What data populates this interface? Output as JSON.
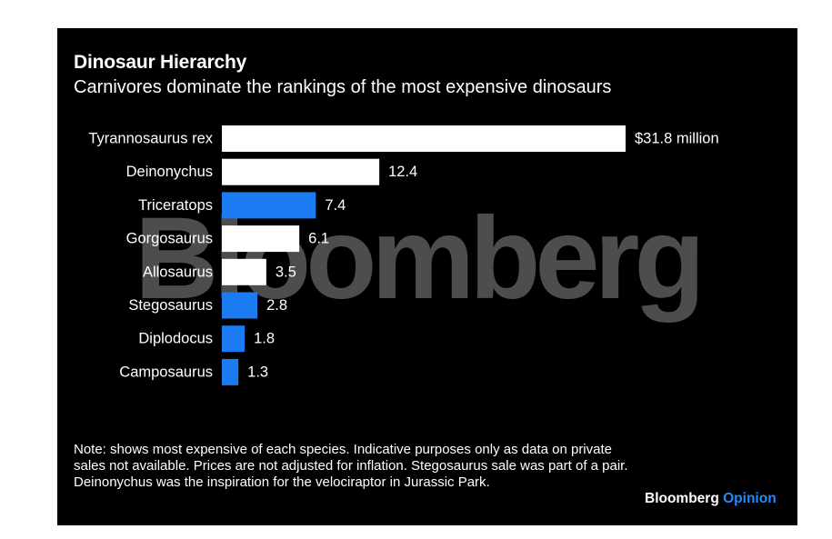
{
  "chart_data": {
    "type": "bar",
    "orientation": "horizontal",
    "title": "Dinosaur Hierarchy",
    "subtitle": "Carnivores dominate the rankings of the most expensive dinosaurs",
    "categories": [
      "Tyrannosaurus rex",
      "Deinonychus",
      "Triceratops",
      "Gorgosaurus",
      "Allosaurus",
      "Stegosaurus",
      "Diplodocus",
      "Camposaurus"
    ],
    "values": [
      31.8,
      12.4,
      7.4,
      6.1,
      3.5,
      2.8,
      1.8,
      1.3
    ],
    "value_labels": [
      "$31.8 million",
      "12.4",
      "7.4",
      "6.1",
      "3.5",
      "2.8",
      "1.8",
      "1.3"
    ],
    "bar_colors": [
      "#ffffff",
      "#ffffff",
      "#1a7cf0",
      "#ffffff",
      "#ffffff",
      "#1a7cf0",
      "#1a7cf0",
      "#1a7cf0"
    ],
    "xlim": [
      0,
      31.8
    ],
    "grid": false,
    "legend": "none"
  },
  "footer": {
    "note": "Note: shows most expensive of each species. Indicative purposes only as data on private sales not available. Prices are not adjusted for inflation. Stegosaurus sale was part of a pair. Deinonychus was the inspiration for the velociraptor in Jurassic Park.",
    "brand_name": "Bloomberg",
    "brand_accent": "Opinion"
  },
  "watermark": "Bloomberg",
  "colors": {
    "background": "#000000",
    "text": "#ffffff",
    "accent": "#1e8cff"
  }
}
